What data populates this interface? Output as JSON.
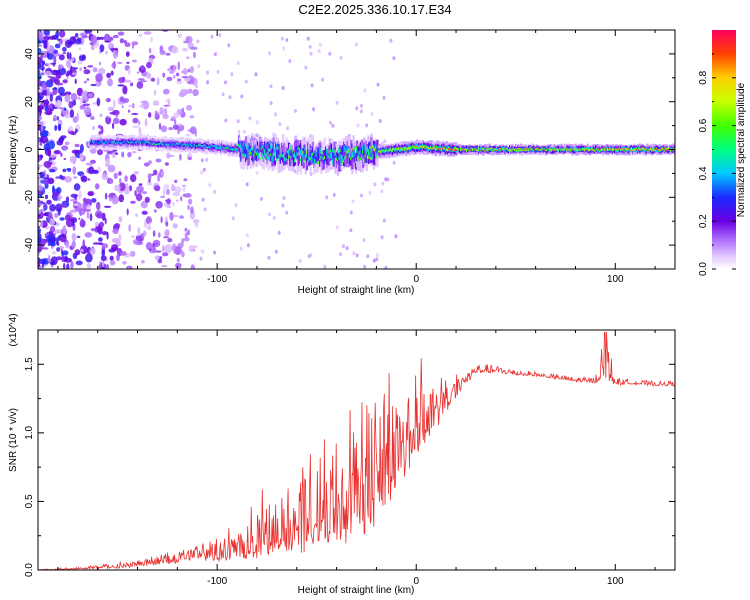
{
  "title": "C2E2.2025.336.10.17.E34",
  "chart_data": [
    {
      "type": "heatmap",
      "xlabel": "Height of straight line (km)",
      "ylabel": "Frequency (Hz)",
      "xlim": [
        -190,
        130
      ],
      "ylim": [
        -50,
        50
      ],
      "xticks": [
        -100,
        0,
        100
      ],
      "xtick_labels": [
        "-100",
        "0",
        "100"
      ],
      "yticks": [
        -40,
        -20,
        0,
        20,
        40
      ],
      "ytick_labels": [
        "-40",
        "-20",
        "0",
        "20",
        "40"
      ],
      "colorbar": {
        "label": "Normalized spectral amplitude",
        "range": [
          0,
          1
        ],
        "ticks": [
          0.0,
          0.2,
          0.4,
          0.6,
          0.8
        ],
        "tick_labels": [
          "0.0",
          "0.2",
          "0.4",
          "0.6",
          "0.8"
        ]
      },
      "ridge": {
        "description_points_x": [
          -160,
          -140,
          -120,
          -100,
          -80,
          -60,
          -40,
          -20,
          0,
          20,
          40,
          60,
          80,
          100,
          130
        ],
        "center_freq": [
          3,
          3,
          2,
          1,
          -1,
          -2,
          -3,
          -1,
          1,
          0,
          0,
          0,
          0,
          0,
          0
        ],
        "peak_amplitude": [
          0.4,
          0.45,
          0.45,
          0.5,
          0.55,
          0.6,
          0.6,
          0.7,
          0.8,
          0.9,
          0.85,
          0.85,
          0.85,
          0.95,
          0.9
        ]
      }
    },
    {
      "type": "line",
      "xlabel": "Height of straight line (km)",
      "ylabel": "SNR (10 * v/v)",
      "scale_label": "(x10^4)",
      "xlim": [
        -190,
        130
      ],
      "ylim": [
        0,
        1.75
      ],
      "xticks": [
        -100,
        0,
        100
      ],
      "xtick_labels": [
        "-100",
        "0",
        "100"
      ],
      "yticks": [
        0.0,
        0.5,
        1.0,
        1.5
      ],
      "ytick_labels": [
        "0.0",
        "0.5",
        "1.0",
        "1.5"
      ],
      "series": [
        {
          "name": "SNR",
          "color": "#e8302e",
          "x": [
            -190,
            -170,
            -150,
            -140,
            -130,
            -120,
            -110,
            -100,
            -90,
            -80,
            -70,
            -60,
            -50,
            -40,
            -30,
            -20,
            -10,
            0,
            10,
            20,
            30,
            40,
            50,
            60,
            70,
            80,
            90,
            95,
            100,
            110,
            120,
            130
          ],
          "y": [
            0.0,
            0.01,
            0.02,
            0.03,
            0.05,
            0.07,
            0.1,
            0.1,
            0.12,
            0.15,
            0.2,
            0.25,
            0.3,
            0.35,
            0.45,
            0.55,
            0.75,
            0.95,
            1.1,
            1.3,
            1.45,
            1.45,
            1.43,
            1.42,
            1.4,
            1.38,
            1.37,
            1.5,
            1.36,
            1.36,
            1.35,
            1.35
          ],
          "noise_amp": [
            0.005,
            0.01,
            0.02,
            0.03,
            0.04,
            0.05,
            0.07,
            0.1,
            0.12,
            0.2,
            0.25,
            0.35,
            0.4,
            0.5,
            0.55,
            0.6,
            0.45,
            0.3,
            0.2,
            0.1,
            0.04,
            0.03,
            0.03,
            0.02,
            0.02,
            0.02,
            0.03,
            0.25,
            0.03,
            0.02,
            0.02,
            0.02
          ]
        }
      ]
    }
  ]
}
